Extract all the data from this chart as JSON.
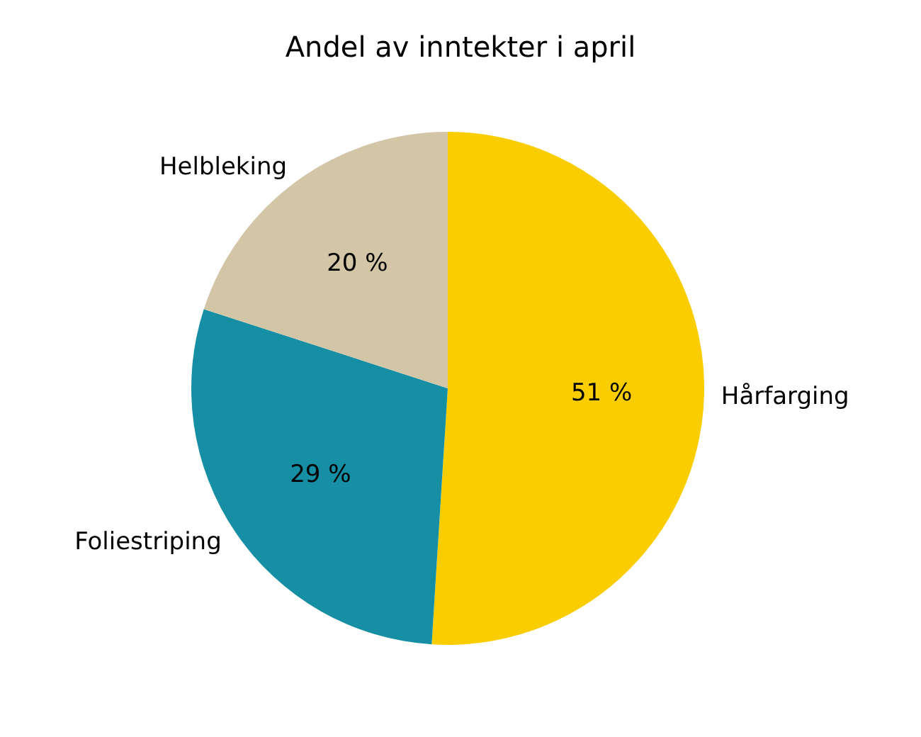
{
  "chart_data": {
    "type": "pie",
    "title": "Andel av inntekter i april",
    "categories": [
      "Hårfarging",
      "Foliestriping",
      "Helbleking"
    ],
    "values": [
      51,
      29,
      20
    ],
    "colors": [
      "#f9cd00",
      "#168fa5",
      "#d3c6a6"
    ],
    "value_labels": [
      "51 %",
      "29 %",
      "20 %"
    ]
  }
}
